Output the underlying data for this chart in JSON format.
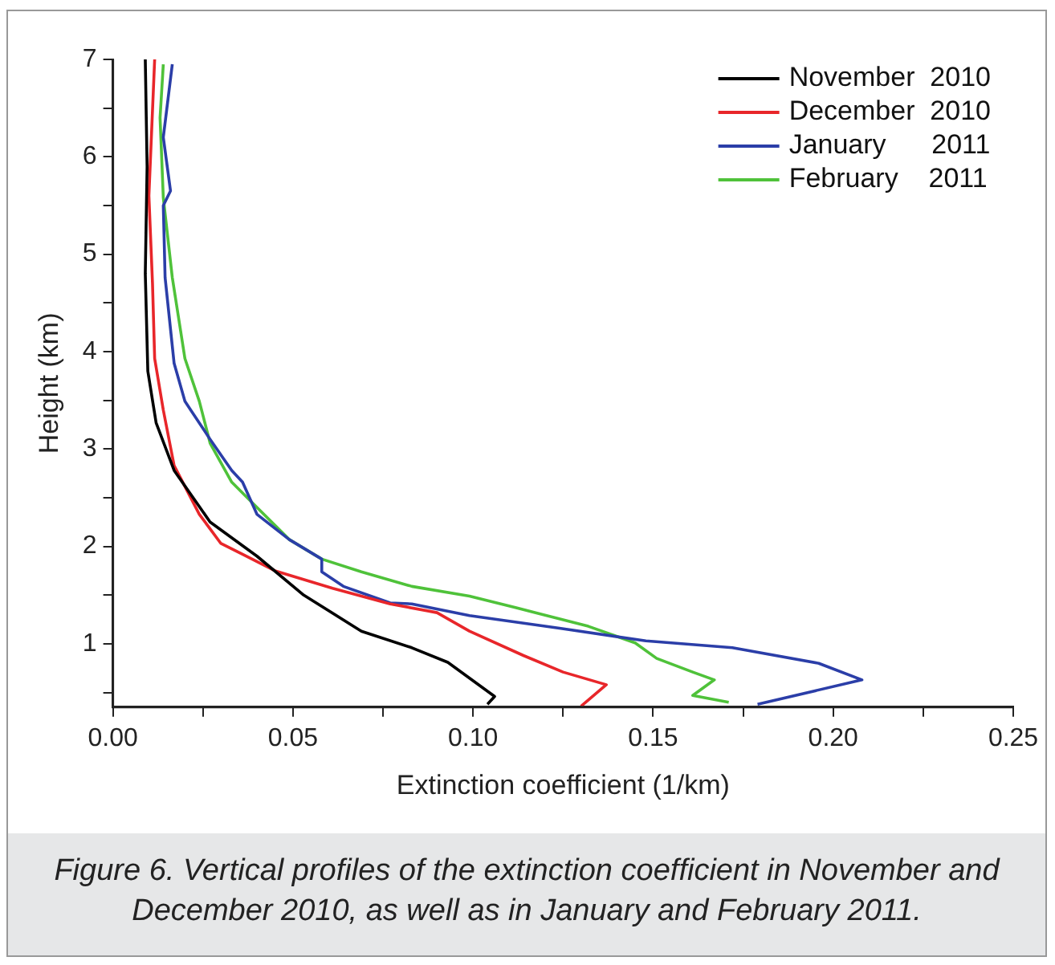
{
  "chart_data": {
    "type": "line",
    "xlabel": "Extinction coefficient (1/km)",
    "ylabel": "Height (km)",
    "xlim": [
      0,
      0.25
    ],
    "ylim": [
      0.35,
      7
    ],
    "xticks": [
      {
        "value": 0,
        "label": "0.00"
      },
      {
        "value": 0.025,
        "label": null
      },
      {
        "value": 0.05,
        "label": "0.05"
      },
      {
        "value": 0.075,
        "label": null
      },
      {
        "value": 0.1,
        "label": "0.10"
      },
      {
        "value": 0.125,
        "label": null
      },
      {
        "value": 0.15,
        "label": "0.15"
      },
      {
        "value": 0.175,
        "label": null
      },
      {
        "value": 0.2,
        "label": "0.20"
      },
      {
        "value": 0.225,
        "label": null
      },
      {
        "value": 0.25,
        "label": "0.25"
      }
    ],
    "yticks": [
      {
        "value": 0.5,
        "label": null
      },
      1,
      {
        "value": 1.5,
        "label": null
      },
      2,
      {
        "value": 2.5,
        "label": null
      },
      3,
      {
        "value": 3.5,
        "label": null
      },
      4,
      {
        "value": 4.5,
        "label": null
      },
      5,
      {
        "value": 5.5,
        "label": null
      },
      6,
      {
        "value": 6.5,
        "label": null
      },
      7
    ],
    "grid": false,
    "legend": "top right",
    "marker": "none",
    "line_style": "solid",
    "series": [
      {
        "name": "November  2010",
        "color": "#000000",
        "x": [
          0.104,
          0.106,
          0.093,
          0.083,
          0.069,
          0.053,
          0.04,
          0.027,
          0.017,
          0.012,
          0.0097,
          0.009,
          0.0095,
          0.009
        ],
        "values": [
          0.38,
          0.46,
          0.81,
          0.96,
          1.13,
          1.5,
          1.9,
          2.25,
          2.78,
          3.27,
          3.8,
          4.8,
          5.9,
          7
        ]
      },
      {
        "name": "December  2010",
        "color": "#e8262a",
        "x": [
          0.13,
          0.137,
          0.125,
          0.114,
          0.099,
          0.09,
          0.077,
          0.061,
          0.045,
          0.036,
          0.03,
          0.024,
          0.017,
          0.014,
          0.0116,
          0.011,
          0.01,
          0.0116
        ],
        "values": [
          0.36,
          0.58,
          0.71,
          0.88,
          1.13,
          1.32,
          1.41,
          1.57,
          1.75,
          1.92,
          2.03,
          2.33,
          2.83,
          3.4,
          3.93,
          4.7,
          5.6,
          7
        ]
      },
      {
        "name": "January      2011",
        "color": "#2b3ea8",
        "x": [
          0.179,
          0.208,
          0.196,
          0.172,
          0.148,
          0.124,
          0.099,
          0.083,
          0.077,
          0.064,
          0.058,
          0.058,
          0.049,
          0.04,
          0.036,
          0.033,
          0.027,
          0.02,
          0.017,
          0.0145,
          0.014,
          0.016,
          0.014,
          0.0165
        ],
        "values": [
          0.38,
          0.63,
          0.8,
          0.96,
          1.03,
          1.16,
          1.29,
          1.41,
          1.42,
          1.59,
          1.74,
          1.87,
          2.07,
          2.33,
          2.66,
          2.78,
          3.1,
          3.49,
          3.88,
          4.76,
          5.5,
          5.65,
          6.2,
          6.95
        ]
      },
      {
        "name": "February    2011",
        "color": "#4fc23a",
        "x": [
          0.171,
          0.161,
          0.167,
          0.161,
          0.151,
          0.145,
          0.132,
          0.112,
          0.099,
          0.083,
          0.069,
          0.058,
          0.049,
          0.04,
          0.033,
          0.027,
          0.024,
          0.02,
          0.0165,
          0.014,
          0.0131,
          0.014
        ],
        "values": [
          0.4,
          0.47,
          0.63,
          0.71,
          0.85,
          1.01,
          1.18,
          1.37,
          1.49,
          1.59,
          1.74,
          1.87,
          2.07,
          2.4,
          2.66,
          3.06,
          3.49,
          3.93,
          4.76,
          5.58,
          6.4,
          6.95
        ]
      }
    ],
    "annotations": [
      "Figure 6. Vertical profiles of the extinction coefficient in November and December 2010, as well as in January and February 2011."
    ]
  }
}
